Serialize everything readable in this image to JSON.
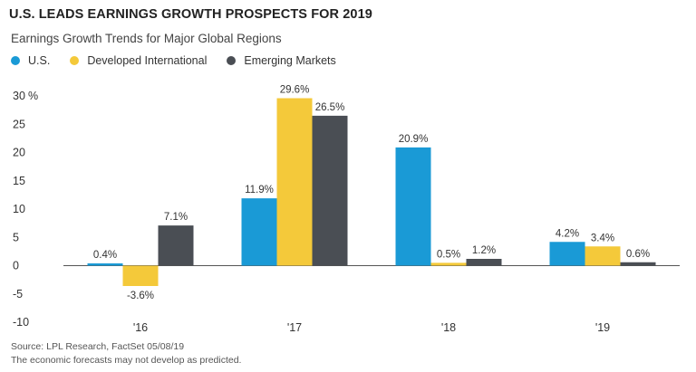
{
  "title": "U.S. LEADS EARNINGS GROWTH PROSPECTS FOR 2019",
  "subtitle": "Earnings Growth Trends for Major Global Regions",
  "footer": {
    "source": "Source: LPL Research, FactSet 05/08/19",
    "disclaimer": "The economic forecasts may not develop as predicted."
  },
  "chart_data": {
    "type": "bar",
    "categories": [
      "'16",
      "'17",
      "'18",
      "'19"
    ],
    "series": [
      {
        "name": "U.S.",
        "color": "#1a9ad6",
        "values": [
          0.4,
          11.9,
          20.9,
          4.2
        ],
        "labels": [
          "0.4%",
          "11.9%",
          "20.9%",
          "4.2%"
        ]
      },
      {
        "name": "Developed International",
        "color": "#f4c93a",
        "values": [
          -3.6,
          29.6,
          0.5,
          3.4
        ],
        "labels": [
          "-3.6%",
          "29.6%",
          "0.5%",
          "3.4%"
        ]
      },
      {
        "name": "Emerging Markets",
        "color": "#4a4e54",
        "values": [
          7.1,
          26.5,
          1.2,
          0.6
        ],
        "labels": [
          "7.1%",
          "26.5%",
          "1.2%",
          "0.6%"
        ]
      }
    ],
    "yticks": [
      30,
      25,
      20,
      15,
      10,
      5,
      0,
      -5,
      -10
    ],
    "ytick_labels": [
      "30",
      "25",
      "20",
      "15",
      "10",
      "5",
      "0",
      "-5",
      "-10"
    ],
    "y_unit": "%",
    "ylim": [
      -10,
      30
    ],
    "grid": false,
    "legend_position": "top-left"
  }
}
